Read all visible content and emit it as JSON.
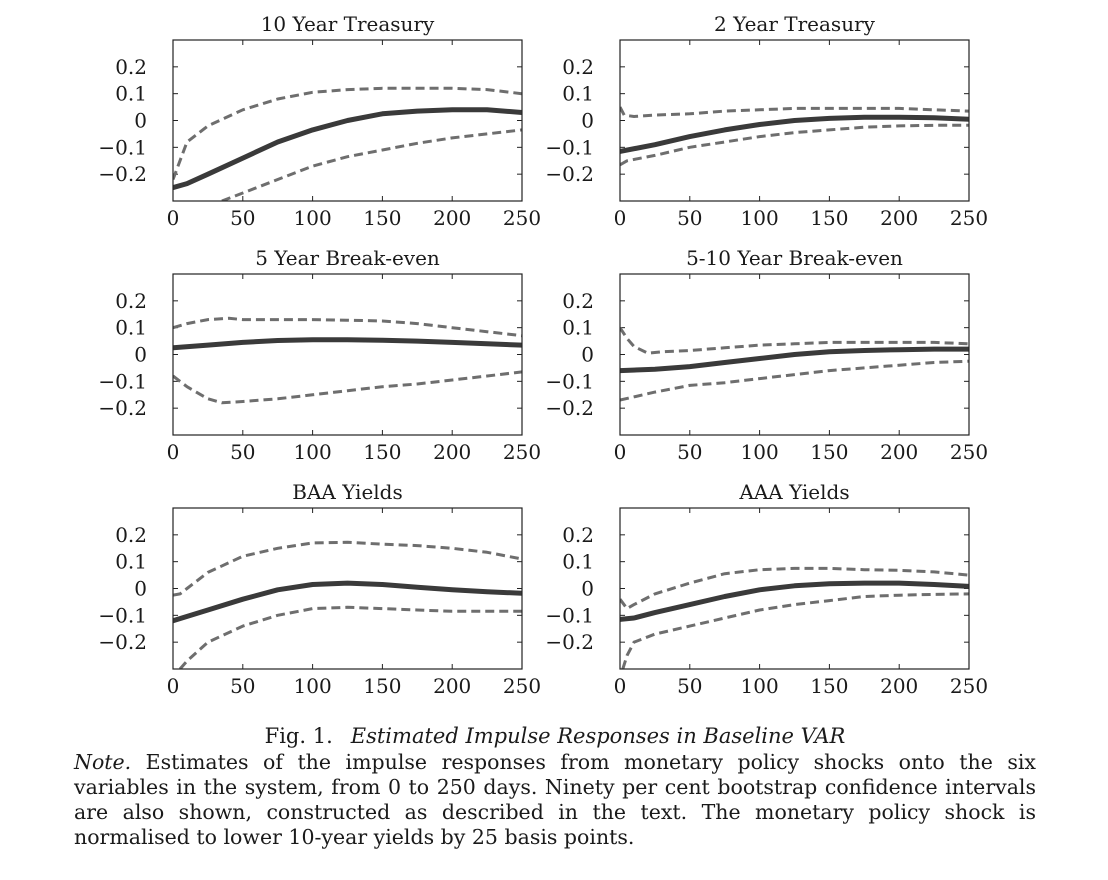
{
  "chart_data": [
    {
      "type": "line",
      "title": "10 Year Treasury",
      "xlim": [
        0,
        250
      ],
      "ylim": [
        -0.3,
        0.3
      ],
      "xticks": [
        0,
        50,
        100,
        150,
        200,
        250
      ],
      "yticks": [
        0.2,
        0.1,
        0,
        -0.1,
        -0.2
      ],
      "xtick_labels": [
        "0",
        "50",
        "100",
        "150",
        "200",
        "250"
      ],
      "ytick_labels": [
        "0.2",
        "0.1",
        "0",
        "−0.1",
        "−0.2"
      ],
      "series": [
        {
          "role": "estimate",
          "style": "solid",
          "color": "#3a3a3a",
          "x": [
            0,
            10,
            25,
            50,
            75,
            100,
            125,
            150,
            175,
            200,
            225,
            250
          ],
          "y": [
            -0.25,
            -0.235,
            -0.2,
            -0.14,
            -0.08,
            -0.035,
            0.0,
            0.025,
            0.035,
            0.04,
            0.04,
            0.03
          ]
        },
        {
          "role": "upper",
          "style": "dashed",
          "color": "#6e6e6e",
          "x": [
            0,
            10,
            25,
            50,
            75,
            100,
            125,
            150,
            175,
            200,
            225,
            250
          ],
          "y": [
            -0.22,
            -0.08,
            -0.02,
            0.04,
            0.08,
            0.105,
            0.115,
            0.12,
            0.12,
            0.12,
            0.115,
            0.1
          ]
        },
        {
          "role": "lower",
          "style": "dashed",
          "color": "#6e6e6e",
          "x": [
            35,
            50,
            75,
            100,
            125,
            150,
            175,
            200,
            225,
            250
          ],
          "y": [
            -0.3,
            -0.27,
            -0.22,
            -0.17,
            -0.135,
            -0.11,
            -0.085,
            -0.065,
            -0.05,
            -0.035
          ]
        }
      ]
    },
    {
      "type": "line",
      "title": "2 Year Treasury",
      "xlim": [
        0,
        250
      ],
      "ylim": [
        -0.3,
        0.3
      ],
      "xticks": [
        0,
        50,
        100,
        150,
        200,
        250
      ],
      "yticks": [
        0.2,
        0.1,
        0,
        -0.1,
        -0.2
      ],
      "xtick_labels": [
        "0",
        "50",
        "100",
        "150",
        "200",
        "250"
      ],
      "ytick_labels": [
        "0.2",
        "0.1",
        "0",
        "−0.1",
        "−0.2"
      ],
      "series": [
        {
          "role": "estimate",
          "style": "solid",
          "color": "#3a3a3a",
          "x": [
            0,
            25,
            50,
            75,
            100,
            125,
            150,
            175,
            200,
            225,
            250
          ],
          "y": [
            -0.115,
            -0.09,
            -0.06,
            -0.035,
            -0.015,
            0.0,
            0.008,
            0.012,
            0.012,
            0.01,
            0.005
          ]
        },
        {
          "role": "upper",
          "style": "dashed",
          "color": "#6e6e6e",
          "x": [
            0,
            3,
            10,
            25,
            50,
            75,
            100,
            125,
            150,
            175,
            200,
            225,
            250
          ],
          "y": [
            0.05,
            0.02,
            0.015,
            0.02,
            0.025,
            0.035,
            0.04,
            0.045,
            0.045,
            0.045,
            0.045,
            0.04,
            0.035
          ]
        },
        {
          "role": "lower",
          "style": "dashed",
          "color": "#6e6e6e",
          "x": [
            0,
            5,
            25,
            50,
            75,
            100,
            125,
            150,
            175,
            200,
            225,
            250
          ],
          "y": [
            -0.165,
            -0.15,
            -0.13,
            -0.1,
            -0.08,
            -0.06,
            -0.045,
            -0.035,
            -0.025,
            -0.02,
            -0.018,
            -0.018
          ]
        }
      ]
    },
    {
      "type": "line",
      "title": "5 Year Break-even",
      "xlim": [
        0,
        250
      ],
      "ylim": [
        -0.3,
        0.3
      ],
      "xticks": [
        0,
        50,
        100,
        150,
        200,
        250
      ],
      "yticks": [
        0.2,
        0.1,
        0,
        -0.1,
        -0.2
      ],
      "xtick_labels": [
        "0",
        "50",
        "100",
        "150",
        "200",
        "250"
      ],
      "ytick_labels": [
        "0.2",
        "0.1",
        "0",
        "−0.1",
        "−0.2"
      ],
      "series": [
        {
          "role": "estimate",
          "style": "solid",
          "color": "#3a3a3a",
          "x": [
            0,
            25,
            50,
            75,
            100,
            125,
            150,
            175,
            200,
            225,
            250
          ],
          "y": [
            0.025,
            0.035,
            0.045,
            0.052,
            0.055,
            0.055,
            0.053,
            0.05,
            0.045,
            0.04,
            0.035
          ]
        },
        {
          "role": "upper",
          "style": "dashed",
          "color": "#6e6e6e",
          "x": [
            0,
            10,
            25,
            40,
            50,
            75,
            100,
            125,
            150,
            175,
            200,
            225,
            250
          ],
          "y": [
            0.1,
            0.115,
            0.13,
            0.135,
            0.13,
            0.13,
            0.13,
            0.128,
            0.125,
            0.115,
            0.1,
            0.085,
            0.07
          ]
        },
        {
          "role": "lower",
          "style": "dashed",
          "color": "#6e6e6e",
          "x": [
            0,
            10,
            25,
            35,
            50,
            75,
            100,
            125,
            150,
            175,
            200,
            225,
            250
          ],
          "y": [
            -0.08,
            -0.12,
            -0.165,
            -0.18,
            -0.175,
            -0.165,
            -0.15,
            -0.135,
            -0.12,
            -0.11,
            -0.095,
            -0.08,
            -0.065
          ]
        }
      ]
    },
    {
      "type": "line",
      "title": "5-10 Year Break-even",
      "xlim": [
        0,
        250
      ],
      "ylim": [
        -0.3,
        0.3
      ],
      "xticks": [
        0,
        50,
        100,
        150,
        200,
        250
      ],
      "yticks": [
        0.2,
        0.1,
        0,
        -0.1,
        -0.2
      ],
      "xtick_labels": [
        "0",
        "50",
        "100",
        "150",
        "200",
        "250"
      ],
      "ytick_labels": [
        "0.2",
        "0.1",
        "0",
        "−0.1",
        "−0.2"
      ],
      "series": [
        {
          "role": "estimate",
          "style": "solid",
          "color": "#3a3a3a",
          "x": [
            0,
            25,
            50,
            75,
            100,
            125,
            150,
            175,
            200,
            225,
            250
          ],
          "y": [
            -0.06,
            -0.055,
            -0.045,
            -0.03,
            -0.015,
            0.0,
            0.01,
            0.015,
            0.018,
            0.02,
            0.02
          ]
        },
        {
          "role": "upper",
          "style": "dashed",
          "color": "#6e6e6e",
          "x": [
            0,
            5,
            10,
            20,
            30,
            50,
            75,
            100,
            125,
            150,
            175,
            200,
            225,
            250
          ],
          "y": [
            0.1,
            0.06,
            0.03,
            0.005,
            0.01,
            0.015,
            0.025,
            0.035,
            0.04,
            0.045,
            0.045,
            0.045,
            0.045,
            0.04
          ]
        },
        {
          "role": "lower",
          "style": "dashed",
          "color": "#6e6e6e",
          "x": [
            0,
            25,
            50,
            75,
            100,
            125,
            150,
            175,
            200,
            225,
            250
          ],
          "y": [
            -0.17,
            -0.14,
            -0.115,
            -0.105,
            -0.09,
            -0.075,
            -0.06,
            -0.05,
            -0.04,
            -0.03,
            -0.025
          ]
        }
      ]
    },
    {
      "type": "line",
      "title": "BAA Yields",
      "xlim": [
        0,
        250
      ],
      "ylim": [
        -0.3,
        0.3
      ],
      "xticks": [
        0,
        50,
        100,
        150,
        200,
        250
      ],
      "yticks": [
        0.2,
        0.1,
        0,
        -0.1,
        -0.2
      ],
      "xtick_labels": [
        "0",
        "50",
        "100",
        "150",
        "200",
        "250"
      ],
      "ytick_labels": [
        "0.2",
        "0.1",
        "0",
        "−0.1",
        "−0.2"
      ],
      "series": [
        {
          "role": "estimate",
          "style": "solid",
          "color": "#3a3a3a",
          "x": [
            0,
            25,
            50,
            75,
            100,
            125,
            150,
            175,
            200,
            225,
            250
          ],
          "y": [
            -0.12,
            -0.08,
            -0.04,
            -0.005,
            0.015,
            0.02,
            0.015,
            0.005,
            -0.005,
            -0.012,
            -0.018
          ]
        },
        {
          "role": "upper",
          "style": "dashed",
          "color": "#6e6e6e",
          "x": [
            0,
            5,
            10,
            25,
            50,
            75,
            100,
            125,
            150,
            175,
            200,
            225,
            250
          ],
          "y": [
            -0.025,
            -0.02,
            0.0,
            0.06,
            0.12,
            0.15,
            0.17,
            0.172,
            0.165,
            0.16,
            0.15,
            0.135,
            0.11
          ]
        },
        {
          "role": "lower",
          "style": "dashed",
          "color": "#6e6e6e",
          "x": [
            5,
            10,
            25,
            50,
            75,
            100,
            125,
            150,
            175,
            200,
            225,
            250
          ],
          "y": [
            -0.3,
            -0.27,
            -0.2,
            -0.14,
            -0.1,
            -0.075,
            -0.07,
            -0.075,
            -0.08,
            -0.085,
            -0.085,
            -0.085
          ]
        }
      ]
    },
    {
      "type": "line",
      "title": "AAA Yields",
      "xlim": [
        0,
        250
      ],
      "ylim": [
        -0.3,
        0.3
      ],
      "xticks": [
        0,
        50,
        100,
        150,
        200,
        250
      ],
      "yticks": [
        0.2,
        0.1,
        0,
        -0.1,
        -0.2
      ],
      "xtick_labels": [
        "0",
        "50",
        "100",
        "150",
        "200",
        "250"
      ],
      "ytick_labels": [
        "0.2",
        "0.1",
        "0",
        "−0.1",
        "−0.2"
      ],
      "series": [
        {
          "role": "estimate",
          "style": "solid",
          "color": "#3a3a3a",
          "x": [
            0,
            10,
            25,
            50,
            75,
            100,
            125,
            150,
            175,
            200,
            225,
            250
          ],
          "y": [
            -0.115,
            -0.11,
            -0.09,
            -0.06,
            -0.03,
            -0.005,
            0.01,
            0.018,
            0.02,
            0.02,
            0.015,
            0.008
          ]
        },
        {
          "role": "upper",
          "style": "dashed",
          "color": "#6e6e6e",
          "x": [
            0,
            5,
            10,
            25,
            50,
            75,
            100,
            125,
            150,
            175,
            200,
            225,
            250
          ],
          "y": [
            -0.04,
            -0.075,
            -0.06,
            -0.02,
            0.02,
            0.055,
            0.07,
            0.075,
            0.075,
            0.07,
            0.068,
            0.062,
            0.05
          ]
        },
        {
          "role": "lower",
          "style": "dashed",
          "color": "#6e6e6e",
          "x": [
            2,
            5,
            10,
            25,
            50,
            75,
            100,
            125,
            150,
            175,
            200,
            225,
            250
          ],
          "y": [
            -0.3,
            -0.25,
            -0.2,
            -0.17,
            -0.14,
            -0.11,
            -0.08,
            -0.06,
            -0.045,
            -0.03,
            -0.025,
            -0.022,
            -0.02
          ]
        }
      ]
    }
  ],
  "caption": {
    "fig_label": "Fig. 1.",
    "fig_title": "Estimated Impulse Responses in Baseline VAR",
    "note_label": "Note.",
    "note_text": " Estimates of the impulse responses from monetary policy shocks onto the six variables in the system, from 0 to 250 days. Ninety per cent bootstrap confidence intervals are also shown, constructed as described in the text. The monetary policy shock is normalised to lower 10-year yields by 25 basis points."
  }
}
